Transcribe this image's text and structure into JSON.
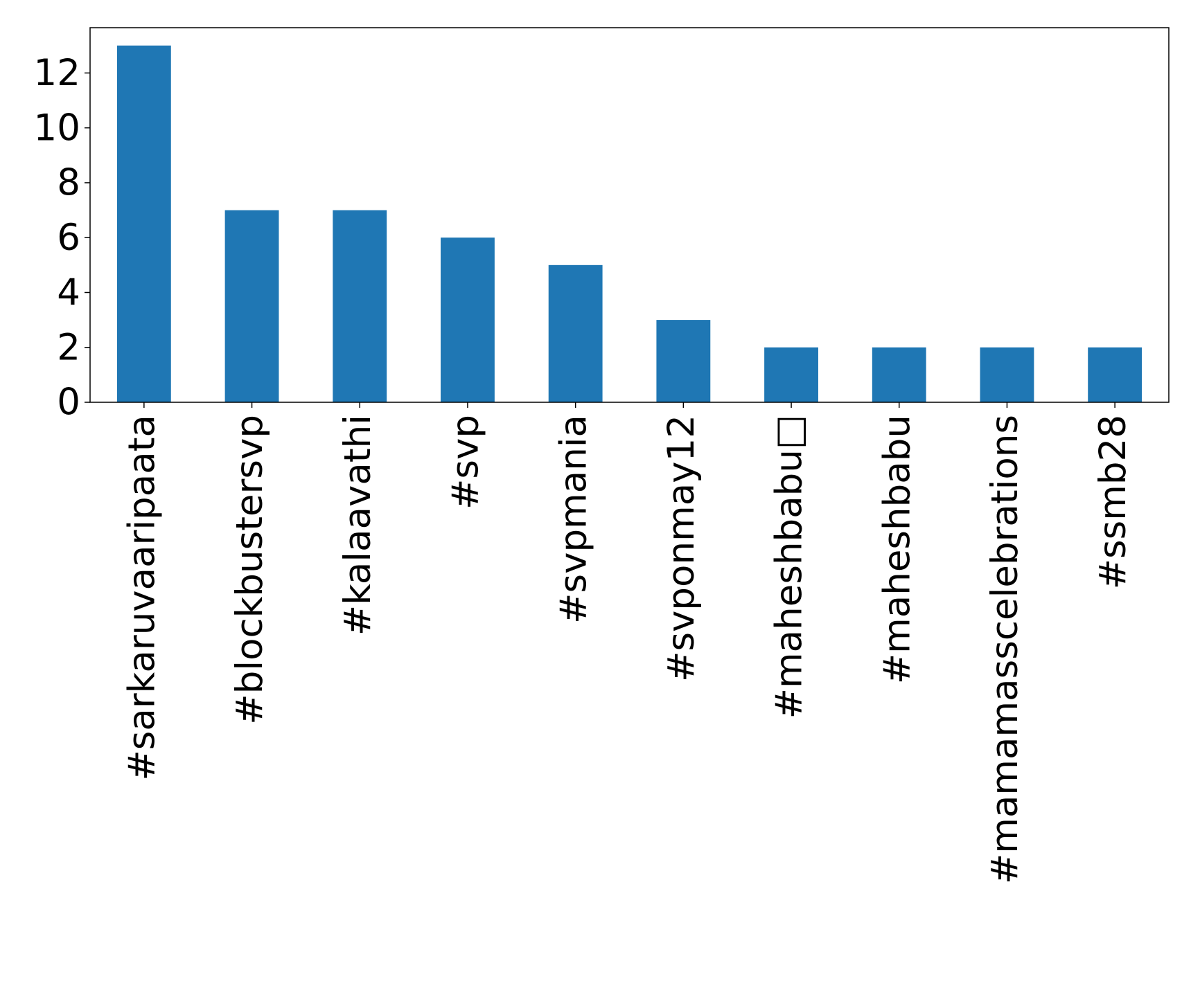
{
  "chart_data": {
    "type": "bar",
    "categories": [
      "#sarkaruvaaripaata",
      "#blockbustersvp",
      "#kalaavathi",
      "#svp",
      "#svpmania",
      "#svponmay12",
      "#maheshbabu□",
      "#maheshbabu",
      "#mamamasscelebrations",
      "#ssmb28"
    ],
    "values": [
      13,
      7,
      7,
      6,
      5,
      3,
      2,
      2,
      2,
      2
    ],
    "color": "#1f77b4",
    "ylim": [
      0,
      13.65
    ],
    "yticks": [
      0,
      2,
      4,
      6,
      8,
      10,
      12
    ],
    "grid": false
  }
}
